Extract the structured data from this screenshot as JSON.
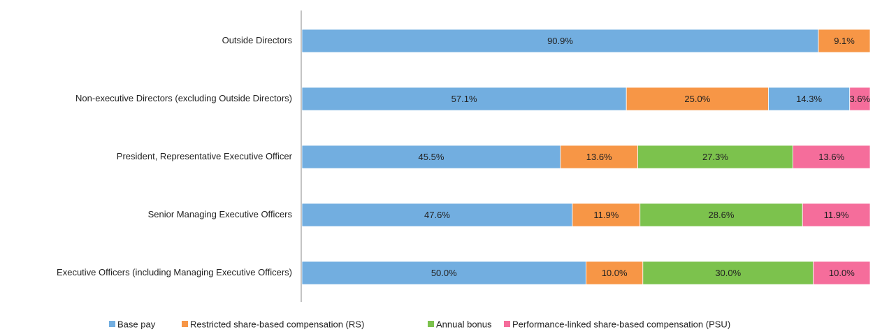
{
  "chart_data": {
    "type": "stacked-bar-horizontal",
    "categories": [
      "Outside Directors",
      "Non-executive Directors (excluding Outside Directors)",
      "President, Representative Executive Officer",
      "Senior Managing Executive Officers",
      "Executive Officers (including Managing Executive Officers)"
    ],
    "xlim": [
      0,
      100
    ],
    "legend": "bottom",
    "series": [
      {
        "name": "Base pay",
        "color": "#72aee0",
        "values": [
          90.9,
          57.1,
          45.5,
          47.6,
          50
        ],
        "value_labels": [
          "90.9%",
          "57.1%",
          "45.5%",
          "47.6%",
          "50.0%"
        ]
      },
      {
        "name": "Restricted share-based compensation (RS)",
        "color": "#f79646",
        "values": [
          9.1,
          25,
          13.6,
          11.9,
          10
        ],
        "value_labels": [
          "9.1%",
          "25.0%",
          "13.6%",
          "11.9%",
          "10.0%"
        ]
      },
      {
        "name": "Annual bonus",
        "color": "#7cc24d",
        "colors": [
          null,
          "#72aee0",
          null,
          null,
          null
        ],
        "values": [
          null,
          14.3,
          27.3,
          28.6,
          30
        ],
        "value_labels": [
          null,
          "14.3%",
          "27.3%",
          "28.6%",
          "30.0%"
        ]
      },
      {
        "name": "Performance-linked share-based compensation (PSU)",
        "color": "#f56d9b",
        "values": [
          null,
          3.6,
          13.6,
          11.9,
          10
        ],
        "value_labels": [
          null,
          "3.6%",
          "13.6%",
          "11.9%",
          "10.0%"
        ]
      }
    ]
  }
}
